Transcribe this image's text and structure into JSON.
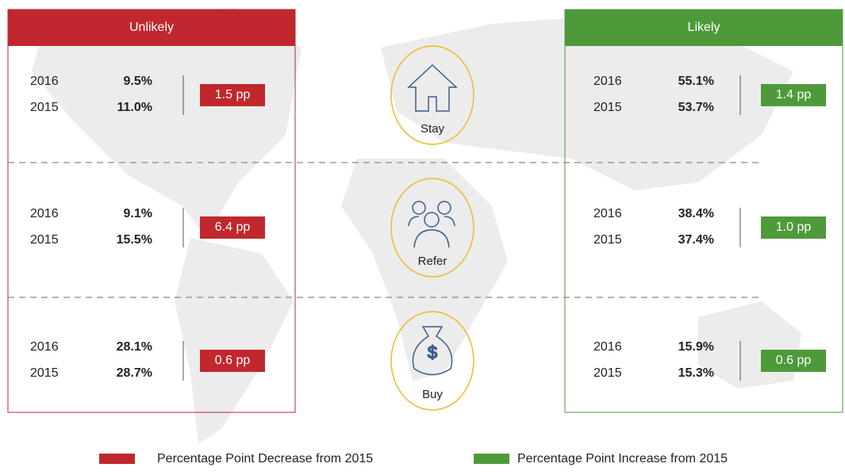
{
  "panels": [
    {
      "title": "Unlikely",
      "color": "#c0282d",
      "rows": [
        {
          "years": [
            "2016",
            "2015"
          ],
          "values": [
            "9.5%",
            "11.0%"
          ],
          "change": "1.5 pp"
        },
        {
          "years": [
            "2016",
            "2015"
          ],
          "values": [
            "9.1%",
            "15.5%"
          ],
          "change": "6.4 pp"
        },
        {
          "years": [
            "2016",
            "2015"
          ],
          "values": [
            "28.1%",
            "28.7%"
          ],
          "change": "0.6 pp"
        }
      ]
    },
    {
      "title": "Likely",
      "color": "#4e9a3a",
      "rows": [
        {
          "years": [
            "2016",
            "2015"
          ],
          "values": [
            "55.1%",
            "53.7%"
          ],
          "change": "1.4 pp"
        },
        {
          "years": [
            "2016",
            "2015"
          ],
          "values": [
            "38.4%",
            "37.4%"
          ],
          "change": "1.0 pp"
        },
        {
          "years": [
            "2016",
            "2015"
          ],
          "values": [
            "15.9%",
            "15.3%"
          ],
          "change": "0.6 pp"
        }
      ]
    }
  ],
  "actions": [
    "Stay",
    "Refer",
    "Buy"
  ],
  "legend": [
    {
      "label": "Percentage Point Decrease from 2015",
      "color": "#c0282d"
    },
    {
      "label": "Percentage Point Increase from 2015",
      "color": "#4e9a3a"
    }
  ]
}
